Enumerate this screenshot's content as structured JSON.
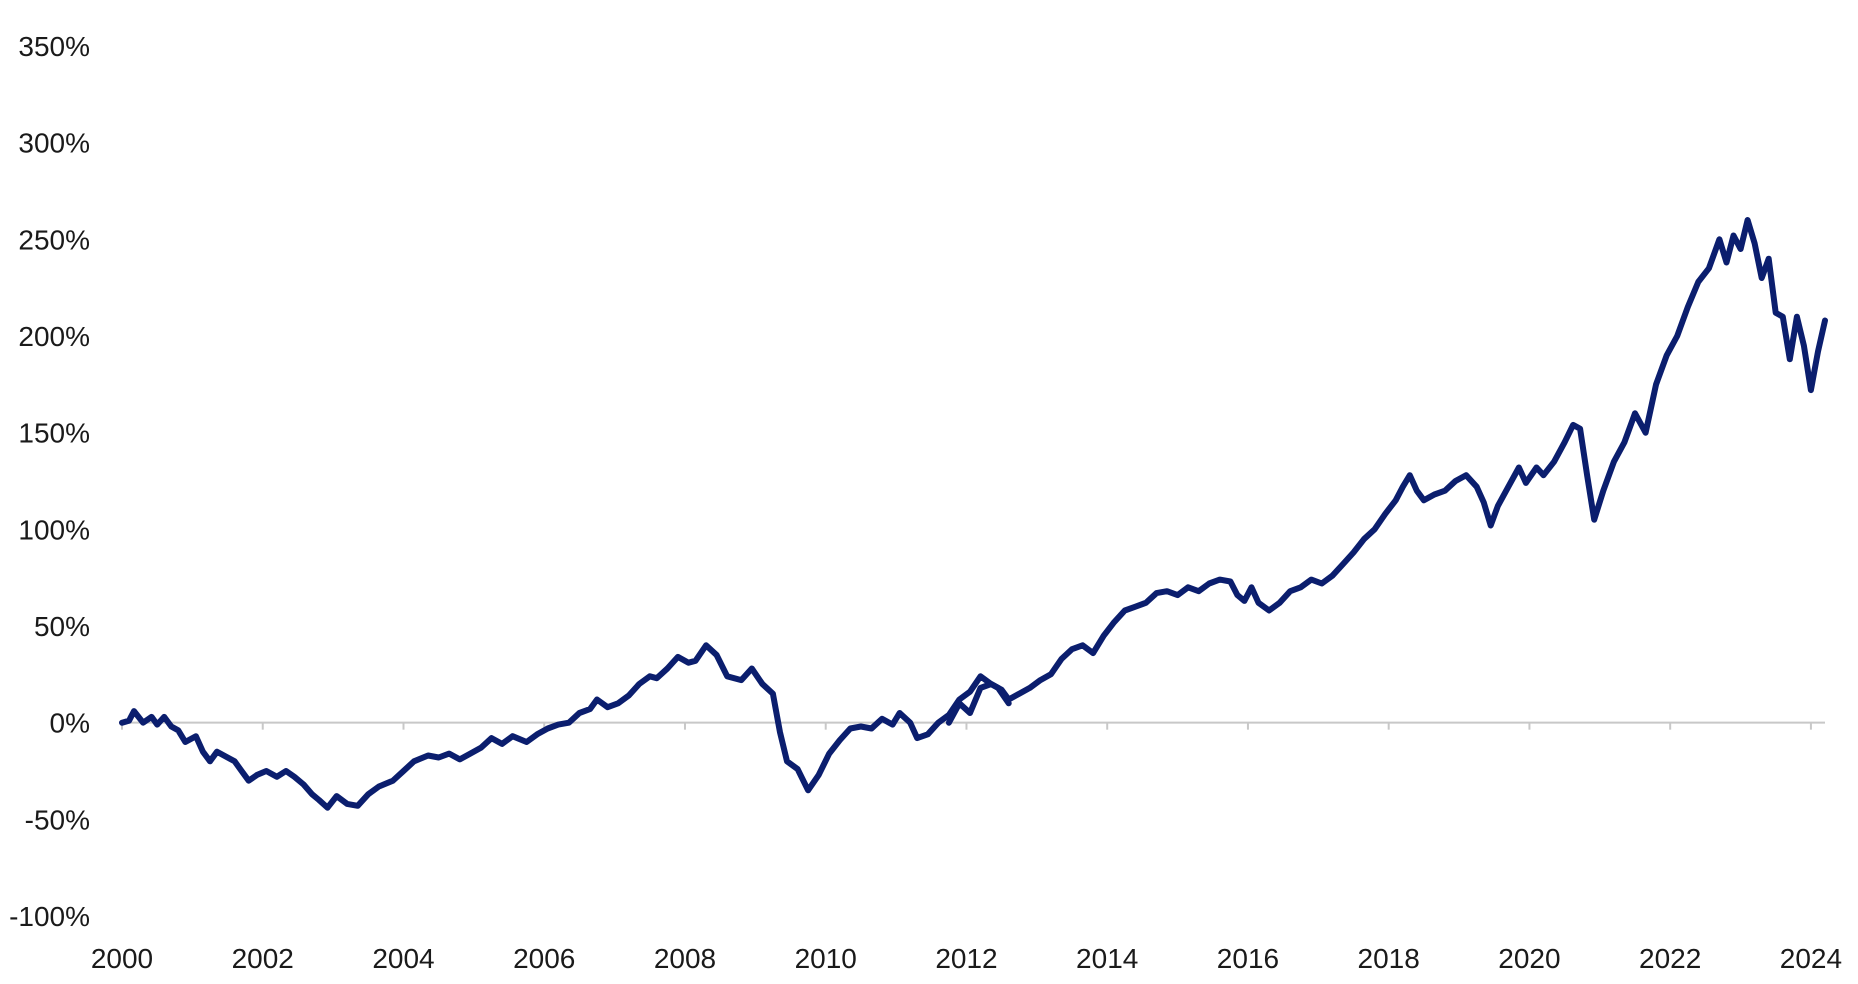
{
  "chart_data": {
    "type": "line",
    "title": "",
    "xlabel": "",
    "ylabel": "",
    "xlim": [
      2000,
      2024.2
    ],
    "ylim": [
      -100,
      350
    ],
    "x_ticks": [
      2000,
      2002,
      2004,
      2006,
      2008,
      2010,
      2012,
      2014,
      2016,
      2018,
      2020,
      2022,
      2024
    ],
    "x_tick_labels": [
      "2000",
      "2002",
      "2004",
      "2006",
      "2008",
      "2010",
      "2012",
      "2014",
      "2016",
      "2018",
      "2020",
      "2022",
      "2024"
    ],
    "y_ticks": [
      -100,
      -50,
      0,
      50,
      100,
      150,
      200,
      250,
      300,
      350
    ],
    "y_tick_labels": [
      "-100%",
      "-50%",
      "0%",
      "50%",
      "100%",
      "150%",
      "200%",
      "250%",
      "300%",
      "350%"
    ],
    "grid": false,
    "legend": "none",
    "colors": {
      "navy": "#0b1e6e",
      "teal": "#1fb2bd",
      "black": "#0a0a0a",
      "zero_line": "#c8c8c8"
    },
    "series": [
      {
        "color": "navy",
        "points": [
          [
            2000.0,
            0
          ],
          [
            2000.1,
            1
          ],
          [
            2000.17,
            6
          ],
          [
            2000.3,
            0
          ],
          [
            2000.42,
            3
          ],
          [
            2000.5,
            -1
          ],
          [
            2000.6,
            3
          ],
          [
            2000.7,
            -2
          ],
          [
            2000.8,
            -4
          ],
          [
            2000.9,
            -10
          ],
          [
            2001.05,
            -7
          ],
          [
            2001.15,
            -15
          ],
          [
            2001.25,
            -20
          ],
          [
            2001.35,
            -15
          ],
          [
            2001.5,
            -18
          ],
          [
            2001.6,
            -20
          ],
          [
            2001.7,
            -25
          ],
          [
            2001.8,
            -30
          ],
          [
            2001.92,
            -27
          ],
          [
            2002.05,
            -25
          ],
          [
            2002.2,
            -28
          ],
          [
            2002.33,
            -25
          ],
          [
            2002.45,
            -28
          ],
          [
            2002.58,
            -32
          ],
          [
            2002.7,
            -37
          ],
          [
            2002.8,
            -40
          ],
          [
            2002.92,
            -44
          ],
          [
            2003.05,
            -38
          ],
          [
            2003.2,
            -42
          ],
          [
            2003.35,
            -43
          ],
          [
            2003.5,
            -37
          ],
          [
            2003.65,
            -33
          ],
          [
            2003.85,
            -30
          ],
          [
            2004.0,
            -25
          ],
          [
            2004.15,
            -20
          ],
          [
            2004.35,
            -17
          ],
          [
            2004.5,
            -18
          ],
          [
            2004.65,
            -16
          ],
          [
            2004.8,
            -19
          ],
          [
            2004.95,
            -16
          ],
          [
            2005.1,
            -13
          ],
          [
            2005.25,
            -8
          ],
          [
            2005.4,
            -11
          ],
          [
            2005.55,
            -7
          ],
          [
            2005.75,
            -10
          ],
          [
            2005.9,
            -6
          ],
          [
            2006.05,
            -3
          ],
          [
            2006.2,
            -1
          ],
          [
            2006.35,
            0
          ],
          [
            2006.5,
            5
          ],
          [
            2006.65,
            7
          ],
          [
            2006.75,
            12
          ],
          [
            2006.9,
            8
          ],
          [
            2007.05,
            10
          ],
          [
            2007.2,
            14
          ],
          [
            2007.35,
            20
          ],
          [
            2007.5,
            24
          ],
          [
            2007.6,
            23
          ],
          [
            2007.75,
            28
          ],
          [
            2007.9,
            34
          ],
          [
            2008.05,
            31
          ],
          [
            2008.15,
            32
          ],
          [
            2008.3,
            40
          ],
          [
            2008.45,
            35
          ],
          [
            2008.6,
            24
          ],
          [
            2008.8,
            22
          ],
          [
            2008.95,
            28
          ],
          [
            2009.1,
            20
          ],
          [
            2009.25,
            15
          ],
          [
            2009.35,
            -5
          ],
          [
            2009.45,
            -20
          ],
          [
            2009.6,
            -24
          ],
          [
            2009.75,
            -35
          ],
          [
            2009.9,
            -27
          ],
          [
            2010.05,
            -16
          ],
          [
            2010.2,
            -9
          ],
          [
            2010.35,
            -3
          ],
          [
            2010.5,
            -2
          ],
          [
            2010.65,
            -3
          ],
          [
            2010.8,
            2
          ],
          [
            2010.95,
            -1
          ],
          [
            2011.05,
            5
          ],
          [
            2011.2,
            0
          ],
          [
            2011.3,
            -8
          ],
          [
            2011.45,
            -6
          ],
          [
            2011.6,
            0
          ],
          [
            2011.75,
            4
          ],
          [
            2011.9,
            12
          ],
          [
            2012.05,
            16
          ],
          [
            2012.2,
            24
          ],
          [
            2012.35,
            20
          ],
          [
            2012.45,
            18
          ],
          [
            2012.6,
            10
          ]
        ]
      },
      {
        "color": "navy",
        "points": [
          [
            2011.75,
            0
          ],
          [
            2011.9,
            10
          ],
          [
            2012.05,
            5
          ],
          [
            2012.2,
            18
          ],
          [
            2012.35,
            20
          ],
          [
            2012.5,
            17
          ],
          [
            2012.6,
            12
          ],
          [
            2012.75,
            15
          ],
          [
            2012.9,
            18
          ],
          [
            2013.05,
            22
          ],
          [
            2013.2,
            25
          ],
          [
            2013.35,
            33
          ],
          [
            2013.5,
            38
          ],
          [
            2013.65,
            40
          ],
          [
            2013.8,
            36
          ],
          [
            2013.95,
            45
          ],
          [
            2014.1,
            52
          ],
          [
            2014.25,
            58
          ],
          [
            2014.4,
            60
          ],
          [
            2014.55,
            62
          ],
          [
            2014.7,
            67
          ],
          [
            2014.85,
            68
          ],
          [
            2015.0,
            66
          ],
          [
            2015.15,
            70
          ],
          [
            2015.3,
            68
          ],
          [
            2015.45,
            72
          ],
          [
            2015.6,
            74
          ],
          [
            2015.75,
            73
          ],
          [
            2015.85,
            66
          ],
          [
            2015.95,
            63
          ],
          [
            2016.05,
            70
          ],
          [
            2016.15,
            62
          ],
          [
            2016.3,
            58
          ],
          [
            2016.45,
            62
          ],
          [
            2016.6,
            68
          ],
          [
            2016.75,
            70
          ],
          [
            2016.9,
            74
          ],
          [
            2017.05,
            72
          ],
          [
            2017.2,
            76
          ],
          [
            2017.35,
            82
          ],
          [
            2017.5,
            88
          ],
          [
            2017.65,
            95
          ],
          [
            2017.8,
            100
          ],
          [
            2017.95,
            108
          ],
          [
            2018.1,
            115
          ],
          [
            2018.2,
            122
          ],
          [
            2018.3,
            128
          ],
          [
            2018.4,
            120
          ],
          [
            2018.5,
            115
          ],
          [
            2018.65,
            118
          ],
          [
            2018.8,
            120
          ],
          [
            2018.95,
            125
          ],
          [
            2019.1,
            128
          ],
          [
            2019.25,
            122
          ],
          [
            2019.35,
            114
          ],
          [
            2019.45,
            102
          ],
          [
            2019.55,
            112
          ],
          [
            2019.7,
            122
          ],
          [
            2019.85,
            132
          ],
          [
            2019.95,
            124
          ],
          [
            2020.1,
            132
          ],
          [
            2020.2,
            128
          ],
          [
            2020.35,
            135
          ],
          [
            2020.5,
            145
          ],
          [
            2020.62,
            154
          ],
          [
            2020.72,
            152
          ],
          [
            2020.82,
            128
          ],
          [
            2020.92,
            105
          ],
          [
            2021.05,
            120
          ],
          [
            2021.2,
            135
          ],
          [
            2021.35,
            145
          ],
          [
            2021.5,
            160
          ],
          [
            2021.65,
            150
          ],
          [
            2021.8,
            175
          ],
          [
            2021.95,
            190
          ],
          [
            2022.1,
            200
          ],
          [
            2022.25,
            215
          ],
          [
            2022.4,
            228
          ],
          [
            2022.55,
            235
          ],
          [
            2022.7,
            250
          ],
          [
            2022.8,
            238
          ],
          [
            2022.9,
            252
          ],
          [
            2023.0,
            245
          ],
          [
            2023.1,
            260
          ],
          [
            2023.2,
            248
          ],
          [
            2023.3,
            230
          ],
          [
            2023.4,
            240
          ],
          [
            2023.5,
            212
          ],
          [
            2023.6,
            210
          ],
          [
            2023.7,
            188
          ],
          [
            2023.8,
            210
          ],
          [
            2023.9,
            195
          ],
          [
            2024.0,
            172
          ],
          [
            2024.1,
            192
          ],
          [
            2024.2,
            208
          ]
        ]
      }
    ]
  }
}
